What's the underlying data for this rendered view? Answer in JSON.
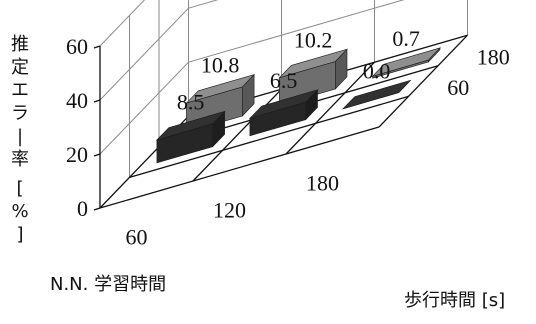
{
  "chart_data": {
    "type": "bar",
    "variant": "3d-grid",
    "ylabel": "推定エラー率 [%]",
    "y_ticks": [
      "0",
      "20",
      "40",
      "60"
    ],
    "ylim": [
      0,
      60
    ],
    "x_axis": {
      "label": "N.N. 学習時間",
      "categories": [
        "60",
        "120",
        "180"
      ]
    },
    "z_axis": {
      "label": "歩行時間 [s]",
      "categories": [
        "60",
        "180"
      ]
    },
    "bars": [
      {
        "learn": "60",
        "walk": "60",
        "value": 8.5,
        "label": "8.5",
        "color": "#262626"
      },
      {
        "learn": "60",
        "walk": "180",
        "value": 10.8,
        "label": "10.8",
        "color": "#6e6e6e"
      },
      {
        "learn": "120",
        "walk": "60",
        "value": 6.5,
        "label": "6.5",
        "color": "#262626"
      },
      {
        "learn": "120",
        "walk": "180",
        "value": 10.2,
        "label": "10.2",
        "color": "#6e6e6e"
      },
      {
        "learn": "180",
        "walk": "60",
        "value": 0.0,
        "label": "0.0",
        "color": "#262626"
      },
      {
        "learn": "180",
        "walk": "180",
        "value": 0.7,
        "label": "0.7",
        "color": "#6e6e6e"
      }
    ],
    "grid": true
  }
}
